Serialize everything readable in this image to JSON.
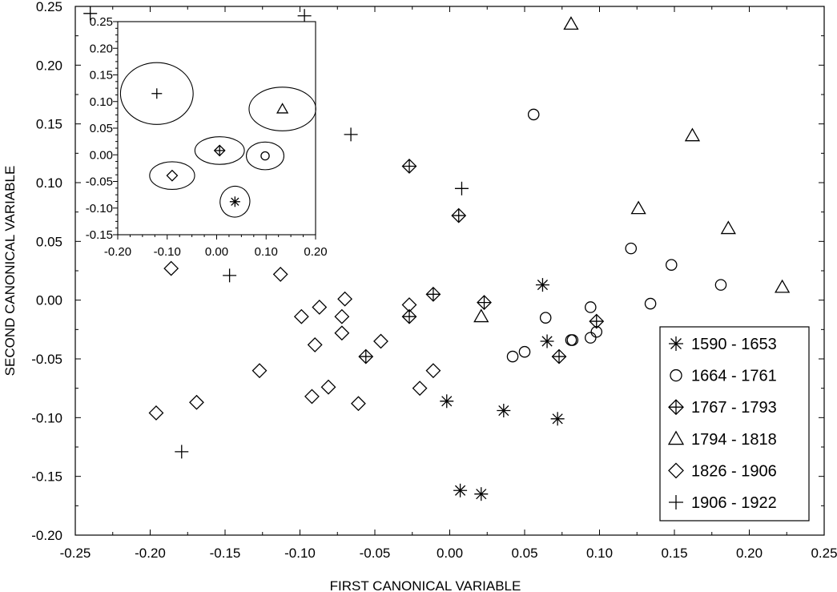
{
  "chart_data": [
    {
      "type": "scatter",
      "xlabel": "FIRST CANONICAL VARIABLE",
      "ylabel": "SECOND CANONICAL VARIABLE",
      "xlim": [
        -0.25,
        0.25
      ],
      "ylim": [
        -0.2,
        0.25
      ],
      "xticks": [
        "-0.25",
        "-0.20",
        "-0.15",
        "-0.10",
        "-0.05",
        "0.00",
        "0.05",
        "0.10",
        "0.15",
        "0.20",
        "0.25"
      ],
      "yticks": [
        "0.25",
        "0.20",
        "0.15",
        "0.10",
        "0.05",
        "0.00",
        "-0.05",
        "-0.10",
        "-0.15",
        "-0.20"
      ],
      "legend_position": "bottom-right",
      "series": [
        {
          "name": "1590 - 1653",
          "marker": "asterisk",
          "points": [
            [
              0.062,
              0.013
            ],
            [
              0.065,
              -0.035
            ],
            [
              0.072,
              -0.101
            ],
            [
              0.036,
              -0.094
            ],
            [
              -0.002,
              -0.086
            ],
            [
              0.007,
              -0.162
            ],
            [
              0.021,
              -0.165
            ]
          ]
        },
        {
          "name": "1664 - 1761",
          "marker": "circle",
          "points": [
            [
              0.056,
              0.158
            ],
            [
              0.121,
              0.044
            ],
            [
              0.148,
              0.03
            ],
            [
              0.181,
              0.013
            ],
            [
              0.134,
              -0.003
            ],
            [
              0.094,
              -0.006
            ],
            [
              0.064,
              -0.015
            ],
            [
              0.098,
              -0.027
            ],
            [
              0.094,
              -0.032
            ],
            [
              0.081,
              -0.034
            ],
            [
              0.082,
              -0.034
            ],
            [
              0.05,
              -0.044
            ],
            [
              0.042,
              -0.048
            ]
          ]
        },
        {
          "name": "1767 - 1793",
          "marker": "diamond-plus",
          "points": [
            [
              -0.027,
              0.114
            ],
            [
              0.006,
              0.072
            ],
            [
              -0.011,
              0.005
            ],
            [
              0.023,
              -0.002
            ],
            [
              -0.027,
              -0.014
            ],
            [
              0.098,
              -0.018
            ],
            [
              -0.056,
              -0.048
            ],
            [
              0.073,
              -0.048
            ]
          ]
        },
        {
          "name": "1794 - 1818",
          "marker": "triangle",
          "points": [
            [
              0.081,
              0.235
            ],
            [
              0.162,
              0.14
            ],
            [
              0.126,
              0.078
            ],
            [
              0.186,
              0.061
            ],
            [
              0.222,
              0.011
            ],
            [
              0.021,
              -0.014
            ]
          ]
        },
        {
          "name": "1826 - 1906",
          "marker": "diamond",
          "points": [
            [
              -0.186,
              0.027
            ],
            [
              -0.113,
              0.022
            ],
            [
              -0.07,
              0.001
            ],
            [
              -0.087,
              -0.006
            ],
            [
              -0.099,
              -0.014
            ],
            [
              -0.072,
              -0.014
            ],
            [
              -0.027,
              -0.004
            ],
            [
              -0.072,
              -0.028
            ],
            [
              -0.046,
              -0.035
            ],
            [
              -0.09,
              -0.038
            ],
            [
              -0.011,
              -0.06
            ],
            [
              -0.127,
              -0.06
            ],
            [
              -0.02,
              -0.075
            ],
            [
              -0.081,
              -0.074
            ],
            [
              -0.092,
              -0.082
            ],
            [
              -0.061,
              -0.088
            ],
            [
              -0.169,
              -0.087
            ],
            [
              -0.196,
              -0.096
            ]
          ]
        },
        {
          "name": "1906 - 1922",
          "marker": "plus",
          "points": [
            [
              -0.24,
              0.244
            ],
            [
              -0.097,
              0.242
            ],
            [
              -0.066,
              0.141
            ],
            [
              0.008,
              0.095
            ],
            [
              -0.147,
              0.021
            ],
            [
              -0.179,
              -0.129
            ]
          ]
        }
      ]
    },
    {
      "type": "scatter",
      "inset": true,
      "xlim": [
        -0.2,
        0.2
      ],
      "ylim": [
        -0.15,
        0.25
      ],
      "xticks": [
        "-0.20",
        "-0.10",
        "0.00",
        "0.10",
        "0.20"
      ],
      "yticks": [
        "0.25",
        "0.20",
        "0.15",
        "0.10",
        "0.05",
        "0.00",
        "-0.05",
        "-0.10",
        "-0.15"
      ],
      "centroids": [
        {
          "marker": "plus",
          "x": -0.121,
          "y": 0.115,
          "rx": 0.147,
          "ry": 0.116
        },
        {
          "marker": "diamond",
          "x": -0.09,
          "y": -0.039,
          "rx": 0.091,
          "ry": 0.052
        },
        {
          "marker": "diamond-plus",
          "x": 0.006,
          "y": 0.008,
          "rx": 0.1,
          "ry": 0.052
        },
        {
          "marker": "triangle",
          "x": 0.133,
          "y": 0.086,
          "rx": 0.135,
          "ry": 0.082
        },
        {
          "marker": "circle",
          "x": 0.098,
          "y": -0.002,
          "rx": 0.076,
          "ry": 0.052
        },
        {
          "marker": "asterisk",
          "x": 0.037,
          "y": -0.088,
          "rx": 0.06,
          "ry": 0.058,
          "rot": 15
        }
      ]
    }
  ]
}
